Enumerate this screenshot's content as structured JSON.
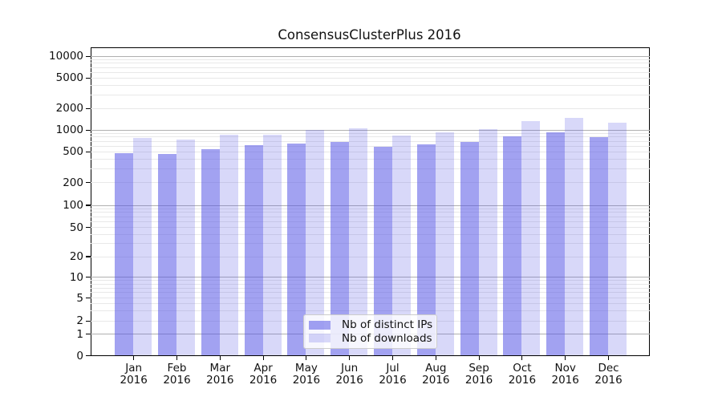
{
  "chart_data": {
    "type": "bar",
    "title": "ConsensusClusterPlus 2016",
    "xlabel": "",
    "ylabel": "",
    "categories": [
      "Jan",
      "Feb",
      "Mar",
      "Apr",
      "May",
      "Jun",
      "Jul",
      "Aug",
      "Sep",
      "Oct",
      "Nov",
      "Dec"
    ],
    "category_year": "2016",
    "series": [
      {
        "name": "Nb of distinct IPs",
        "color": "rgba(85,85,230,0.55)",
        "values": [
          475,
          473,
          545,
          615,
          655,
          680,
          590,
          630,
          690,
          815,
          945,
          800
        ]
      },
      {
        "name": "Nb of downloads",
        "color": "rgba(85,85,230,0.23)",
        "values": [
          770,
          750,
          860,
          855,
          1015,
          1055,
          845,
          930,
          1030,
          1335,
          1490,
          1280
        ]
      }
    ],
    "yticks": [
      0,
      1,
      2,
      5,
      10,
      20,
      50,
      100,
      200,
      500,
      1000,
      2000,
      5000,
      10000
    ],
    "ylim": [
      0,
      10000
    ],
    "scale": "log-like (asinh), 0 at baseline",
    "grid": {
      "orientation": "horizontal",
      "major_values": [
        1,
        10,
        100,
        1000,
        10000
      ],
      "minor_multiples_per_decade": [
        2,
        3,
        4,
        5,
        6,
        7,
        8,
        9
      ],
      "major_color": "#b0b0b0",
      "minor_color": "#e8e8e8"
    },
    "legend": {
      "position": "inside lower center",
      "entries": [
        "Nb of distinct IPs",
        "Nb of downloads"
      ]
    },
    "scale_anchors_value_to_ypx": [
      [
        0,
        443.5
      ],
      [
        1,
        416.5
      ],
      [
        2,
        400.3
      ],
      [
        5,
        371.7
      ],
      [
        10,
        345.7
      ],
      [
        20,
        320.0
      ],
      [
        50,
        283.5
      ],
      [
        100,
        256.0
      ],
      [
        200,
        227.5
      ],
      [
        500,
        189.3
      ],
      [
        1000,
        162.3
      ],
      [
        2000,
        135.3
      ],
      [
        5000,
        97.3
      ],
      [
        10000,
        70.3
      ]
    ]
  }
}
